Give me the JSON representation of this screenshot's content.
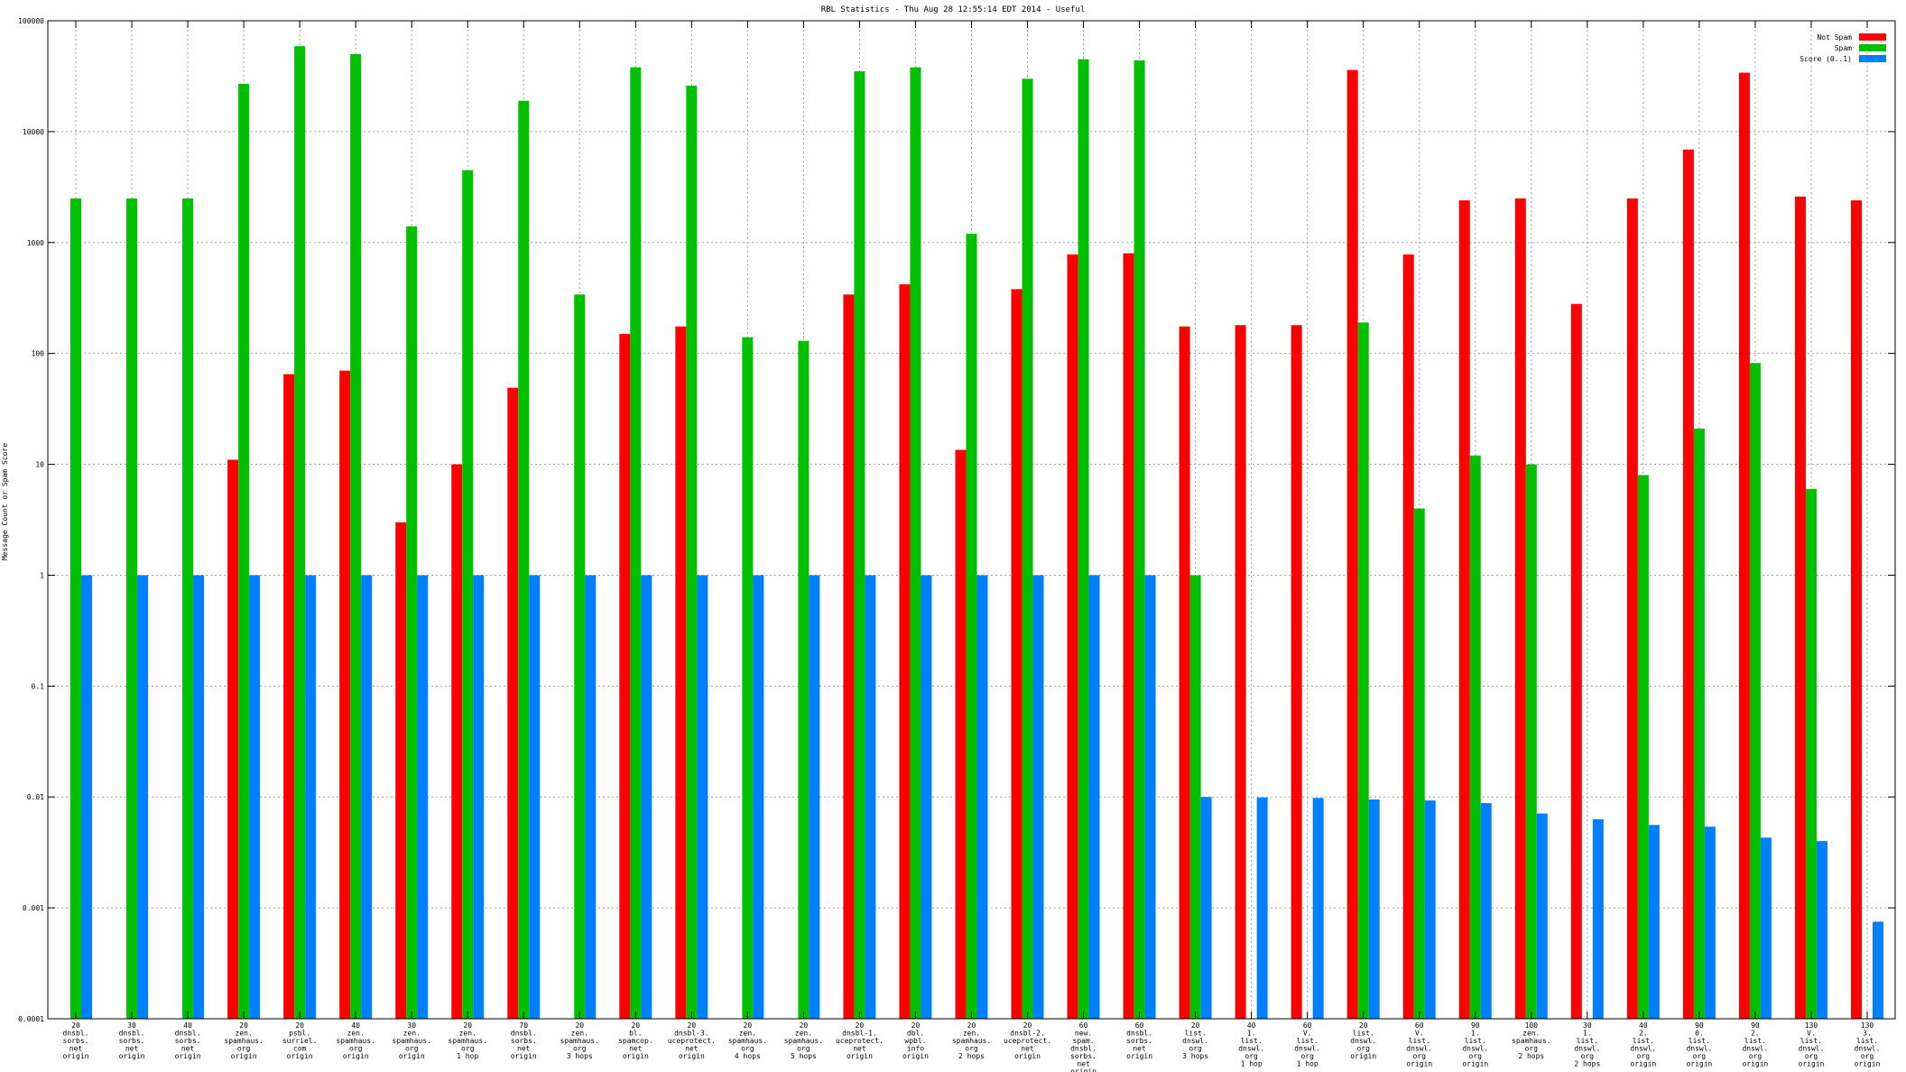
{
  "chart_data": {
    "type": "bar",
    "title": "RBL Statistics - Thu Aug 28 12:55:14 EDT 2014 - Useful",
    "ylabel": "Message Count or Spam Score",
    "xlabel": "",
    "yscale": "log",
    "ylim": [
      0.0001,
      100000
    ],
    "yticks": [
      "0.0001",
      "0.001",
      "0.01",
      "0.1",
      "1",
      "10",
      "100",
      "1000",
      "10000",
      "100000"
    ],
    "grid": true,
    "legend_position": "top-right",
    "categories": [
      [
        "20",
        "dnsbl.",
        "sorbs.",
        "net",
        "origin"
      ],
      [
        "30",
        "dnsbl.",
        "sorbs.",
        "net",
        "origin"
      ],
      [
        "40",
        "dnsbl.",
        "sorbs.",
        "net",
        "origin"
      ],
      [
        "20",
        "zen.",
        "spamhaus.",
        "org",
        "origin"
      ],
      [
        "20",
        "psbl.",
        "surriel.",
        "com",
        "origin"
      ],
      [
        "40",
        "zen.",
        "spamhaus.",
        "org",
        "origin"
      ],
      [
        "30",
        "zen.",
        "spamhaus.",
        "org",
        "origin"
      ],
      [
        "20",
        "zen.",
        "spamhaus.",
        "org",
        "1 hop"
      ],
      [
        "70",
        "dnsbl.",
        "sorbs.",
        "net",
        "origin"
      ],
      [
        "20",
        "zen.",
        "spamhaus.",
        "org",
        "3 hops"
      ],
      [
        "20",
        "bl.",
        "spamcop.",
        "net",
        "origin"
      ],
      [
        "20",
        "dnsbl-3.",
        "uceprotect.",
        "net",
        "origin"
      ],
      [
        "20",
        "zen.",
        "spamhaus.",
        "org",
        "4 hops"
      ],
      [
        "20",
        "zen.",
        "spamhaus.",
        "org",
        "5 hops"
      ],
      [
        "20",
        "dnsbl-1.",
        "uceprotect.",
        "net",
        "origin"
      ],
      [
        "20",
        "dbl.",
        "wpbl.",
        "info",
        "origin"
      ],
      [
        "20",
        "zen.",
        "spamhaus.",
        "org",
        "2 hops"
      ],
      [
        "20",
        "dnsbl-2.",
        "uceprotect.",
        "net",
        "origin"
      ],
      [
        "60",
        "new.",
        "spam.",
        "dnsbl.",
        "sorbs.",
        "net",
        "origin"
      ],
      [
        "60",
        "dnsbl.",
        "sorbs.",
        "net",
        "origin"
      ],
      [
        "20",
        "list.",
        "dnswl.",
        "org",
        "3 hops"
      ],
      [
        "40",
        "1.",
        "list.",
        "dnswl.",
        "org",
        "1 hop"
      ],
      [
        "60",
        "V.",
        "list.",
        "dnswl.",
        "org",
        "1 hop"
      ],
      [
        "20",
        "list.",
        "dnswl.",
        "org",
        "origin"
      ],
      [
        "60",
        "V.",
        "list.",
        "dnswl.",
        "org",
        "origin"
      ],
      [
        "90",
        "1.",
        "list.",
        "dnswl.",
        "org",
        "origin"
      ],
      [
        "100",
        "zen.",
        "spamhaus.",
        "org",
        "2 hops"
      ],
      [
        "30",
        "1.",
        "list.",
        "dnswl.",
        "org",
        "2 hops"
      ],
      [
        "40",
        "2.",
        "list.",
        "dnswl.",
        "org",
        "origin"
      ],
      [
        "90",
        "0.",
        "list.",
        "dnswl.",
        "org",
        "origin"
      ],
      [
        "90",
        "2.",
        "list.",
        "dnswl.",
        "org",
        "origin"
      ],
      [
        "130",
        "V.",
        "list.",
        "dnswl.",
        "org",
        "origin"
      ],
      [
        "130",
        "3.",
        "list.",
        "dnswl.",
        "org",
        "origin"
      ]
    ],
    "series": [
      {
        "name": "Not Spam",
        "color": "#ff0000",
        "values": [
          null,
          null,
          null,
          11,
          65,
          70,
          3,
          10,
          49,
          null,
          150,
          175,
          null,
          null,
          340,
          420,
          13.5,
          380,
          780,
          800,
          175,
          180,
          180,
          36000,
          780,
          2400,
          2500,
          280,
          2500,
          6900,
          34000,
          2600,
          2400
        ]
      },
      {
        "name": "Spam",
        "color": "#00c000",
        "values": [
          2500,
          2500,
          2500,
          27000,
          59000,
          50000,
          1400,
          4500,
          19000,
          340,
          38000,
          26000,
          140,
          130,
          35000,
          38000,
          1200,
          30000,
          45000,
          44000,
          1,
          null,
          null,
          190,
          4,
          12,
          10,
          null,
          8,
          21,
          82,
          6,
          null
        ]
      },
      {
        "name": "Score (0..1)",
        "color": "#0080ff",
        "values": [
          1,
          1,
          1,
          1,
          1,
          1,
          1,
          1,
          1,
          1,
          1,
          1,
          1,
          1,
          1,
          1,
          1,
          1,
          1,
          1,
          0.01,
          0.0099,
          0.0098,
          0.0095,
          0.0093,
          0.0088,
          0.0071,
          0.0063,
          0.0056,
          0.0054,
          0.0043,
          0.004,
          0.00075
        ]
      }
    ]
  }
}
